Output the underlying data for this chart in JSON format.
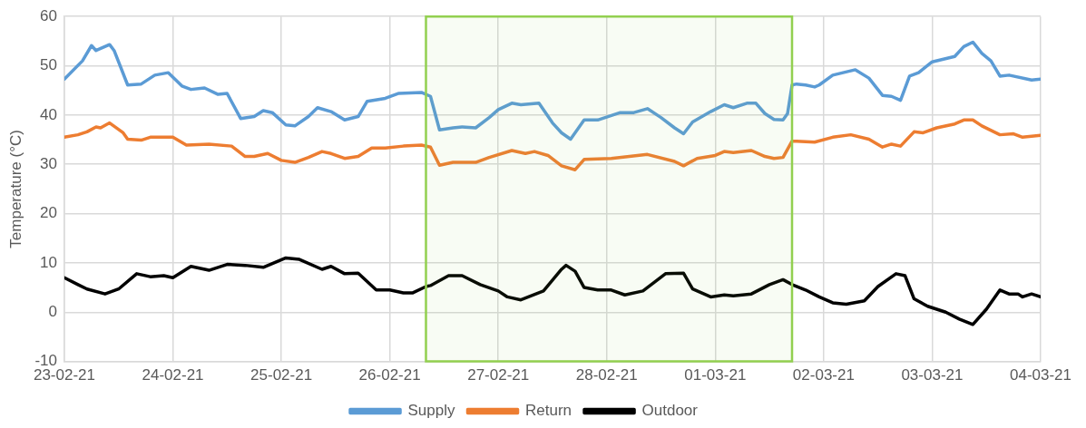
{
  "chart_data": {
    "type": "line",
    "ylabel": "Temperature (°C)",
    "xlim": [
      "--02-23",
      "--03-04"
    ],
    "xticks": [
      {
        "value": "--02-23",
        "label": "23-02-21"
      },
      {
        "value": "--02-24",
        "label": "24-02-21"
      },
      {
        "value": "--02-25",
        "label": "25-02-21"
      },
      {
        "value": "--02-26",
        "label": "26-02-21"
      },
      {
        "value": "--02-27",
        "label": "27-02-21"
      },
      {
        "value": "--02-28",
        "label": "28-02-21"
      },
      {
        "value": "--03-01",
        "label": "01-03-21"
      },
      {
        "value": "--03-02",
        "label": "02-03-21"
      },
      {
        "value": "--03-03",
        "label": "03-03-21"
      },
      {
        "value": "--03-04",
        "label": "04-03-21"
      }
    ],
    "ylim": [
      -10,
      60
    ],
    "yticks": [
      -10,
      0,
      10,
      20,
      30,
      40,
      50,
      60
    ],
    "grid": true,
    "legend": "bottom",
    "marker": "none",
    "line_style": "solid",
    "bands": [
      {
        "axis": "x",
        "from": "--02-26T08:00",
        "to": "--03-01T17:00",
        "color": "#92d050"
      }
    ],
    "series": [
      {
        "name": "Supply",
        "color": "#5b9bd5",
        "x": [
          "--02-23T00:00",
          "--02-23T04:00",
          "--02-23T06:00",
          "--02-23T07:00",
          "--02-23T10:00",
          "--02-23T11:00",
          "--02-23T14:00",
          "--02-23T17:00",
          "--02-23T20:00",
          "--02-23T23:00",
          "--02-24T02:00",
          "--02-24T04:00",
          "--02-24T07:00",
          "--02-24T10:00",
          "--02-24T12:00",
          "--02-24T15:00",
          "--02-24T18:00",
          "--02-24T20:00",
          "--02-24T22:00",
          "--02-25T01:00",
          "--02-25T03:00",
          "--02-25T06:00",
          "--02-25T08:00",
          "--02-25T11:00",
          "--02-25T14:00",
          "--02-25T17:00",
          "--02-25T19:00",
          "--02-25T23:00",
          "--02-26T02:00",
          "--02-26T07:00",
          "--02-26T09:00",
          "--02-26T11:00",
          "--02-26T14:00",
          "--02-26T16:00",
          "--02-26T19:00",
          "--02-26T22:00",
          "--02-27T00:00",
          "--02-27T03:00",
          "--02-27T05:00",
          "--02-27T09:00",
          "--02-27T12:00",
          "--02-27T14:00",
          "--02-27T16:00",
          "--02-27T19:00",
          "--02-27T22:00",
          "--02-28T03:00",
          "--02-28T06:00",
          "--02-28T09:00",
          "--02-28T12:00",
          "--02-28T15:00",
          "--02-28T17:00",
          "--02-28T19:00",
          "--02-28T23:00",
          "--03-01T02:00",
          "--03-01T04:00",
          "--03-01T07:00",
          "--03-01T09:00",
          "--03-01T11:00",
          "--03-01T13:00",
          "--03-01T15:00",
          "--03-01T16:00",
          "--03-01T17:00",
          "--03-01T18:00",
          "--03-01T20:00",
          "--03-01T22:00",
          "--03-01T23:00",
          "--03-02T02:00",
          "--03-02T07:00",
          "--03-02T10:00",
          "--03-02T13:00",
          "--03-02T15:00",
          "--03-02T17:00",
          "--03-02T19:00",
          "--03-02T21:00",
          "--03-03T00:00",
          "--03-03T05:00",
          "--03-03T07:00",
          "--03-03T09:00",
          "--03-03T11:00",
          "--03-03T13:00",
          "--03-03T15:00",
          "--03-03T17:00",
          "--03-03T22:00",
          "--03-04T00:00"
        ],
        "values": [
          47.3,
          51.0,
          54.1,
          53.1,
          54.3,
          53.1,
          46.1,
          46.3,
          48.1,
          48.6,
          45.9,
          45.2,
          45.5,
          44.2,
          44.4,
          39.3,
          39.7,
          40.9,
          40.5,
          38.0,
          37.8,
          39.7,
          41.5,
          40.7,
          39.0,
          39.7,
          42.8,
          43.4,
          44.4,
          44.6,
          43.8,
          37.0,
          37.4,
          37.6,
          37.4,
          39.5,
          41.1,
          42.4,
          42.1,
          42.4,
          38.4,
          36.4,
          35.1,
          39.0,
          39.0,
          40.5,
          40.5,
          41.3,
          39.5,
          37.4,
          36.2,
          38.6,
          40.7,
          42.1,
          41.5,
          42.4,
          42.4,
          40.3,
          39.1,
          39.0,
          40.3,
          46.1,
          46.3,
          46.1,
          45.7,
          46.1,
          48.1,
          49.2,
          47.5,
          44.0,
          43.8,
          43.0,
          47.9,
          48.6,
          50.8,
          51.9,
          53.9,
          54.8,
          52.5,
          51.0,
          47.9,
          48.1,
          47.1,
          47.3
        ]
      },
      {
        "name": "Return",
        "color": "#ed7d31",
        "x": [
          "--02-23T00:00",
          "--02-23T03:00",
          "--02-23T05:00",
          "--02-23T07:00",
          "--02-23T08:00",
          "--02-23T10:00",
          "--02-23T13:00",
          "--02-23T14:00",
          "--02-23T17:00",
          "--02-23T19:00",
          "--02-24T00:00",
          "--02-24T03:00",
          "--02-24T08:00",
          "--02-24T13:00",
          "--02-24T16:00",
          "--02-24T18:00",
          "--02-24T21:00",
          "--02-25T00:00",
          "--02-25T03:00",
          "--02-25T06:00",
          "--02-25T09:00",
          "--02-25T11:00",
          "--02-25T14:00",
          "--02-25T17:00",
          "--02-25T20:00",
          "--02-25T23:00",
          "--02-26T03:00",
          "--02-26T07:00",
          "--02-26T09:00",
          "--02-26T11:00",
          "--02-26T14:00",
          "--02-26T19:00",
          "--02-26T22:00",
          "--02-27T03:00",
          "--02-27T06:00",
          "--02-27T08:00",
          "--02-27T11:00",
          "--02-27T14:00",
          "--02-27T17:00",
          "--02-27T19:00",
          "--02-28T01:00",
          "--02-28T09:00",
          "--02-28T15:00",
          "--02-28T17:00",
          "--02-28T20:00",
          "--03-01T00:00",
          "--03-01T02:00",
          "--03-01T04:00",
          "--03-01T08:00",
          "--03-01T11:00",
          "--03-01T13:00",
          "--03-01T15:00",
          "--03-01T17:00",
          "--03-01T18:00",
          "--03-01T22:00",
          "--03-02T02:00",
          "--03-02T06:00",
          "--03-02T10:00",
          "--03-02T13:00",
          "--03-02T15:00",
          "--03-02T17:00",
          "--03-02T20:00",
          "--03-02T22:00",
          "--03-03T01:00",
          "--03-03T05:00",
          "--03-03T07:00",
          "--03-03T09:00",
          "--03-03T11:00",
          "--03-03T15:00",
          "--03-03T18:00",
          "--03-03T20:00",
          "--03-04T00:00"
        ],
        "values": [
          35.5,
          36.0,
          36.6,
          37.6,
          37.4,
          38.4,
          36.4,
          35.1,
          34.9,
          35.5,
          35.5,
          33.9,
          34.1,
          33.7,
          31.6,
          31.6,
          32.2,
          30.8,
          30.4,
          31.4,
          32.6,
          32.2,
          31.2,
          31.6,
          33.3,
          33.3,
          33.7,
          33.9,
          33.5,
          29.8,
          30.4,
          30.4,
          31.4,
          32.8,
          32.2,
          32.6,
          31.8,
          29.7,
          28.9,
          31.0,
          31.2,
          32.0,
          30.6,
          29.7,
          31.2,
          31.8,
          32.6,
          32.4,
          32.8,
          31.6,
          31.2,
          31.4,
          34.7,
          34.7,
          34.5,
          35.5,
          36.0,
          35.1,
          33.5,
          34.1,
          33.7,
          36.6,
          36.4,
          37.4,
          38.2,
          39.0,
          39.0,
          37.8,
          36.0,
          36.2,
          35.5,
          35.9
        ]
      },
      {
        "name": "Outdoor",
        "color": "#000000",
        "x": [
          "--02-23T00:00",
          "--02-23T03:00",
          "--02-23T05:00",
          "--02-23T09:00",
          "--02-23T12:00",
          "--02-23T16:00",
          "--02-23T19:00",
          "--02-23T22:00",
          "--02-24T00:00",
          "--02-24T04:00",
          "--02-24T08:00",
          "--02-24T12:00",
          "--02-24T16:00",
          "--02-24T20:00",
          "--02-25T01:00",
          "--02-25T04:00",
          "--02-25T09:00",
          "--02-25T11:00",
          "--02-25T14:00",
          "--02-25T17:00",
          "--02-25T21:00",
          "--02-26T00:00",
          "--02-26T03:00",
          "--02-26T05:00",
          "--02-26T08:00",
          "--02-26T09:00",
          "--02-26T13:00",
          "--02-26T16:00",
          "--02-26T20:00",
          "--02-27T00:00",
          "--02-27T02:00",
          "--02-27T05:00",
          "--02-27T10:00",
          "--02-27T14:00",
          "--02-27T15:00",
          "--02-27T17:00",
          "--02-27T19:00",
          "--02-27T22:00",
          "--02-28T01:00",
          "--02-28T04:00",
          "--02-28T08:00",
          "--02-28T13:00",
          "--02-28T17:00",
          "--02-28T19:00",
          "--02-28T23:00",
          "--03-01T02:00",
          "--03-01T04:00",
          "--03-01T08:00",
          "--03-01T12:00",
          "--03-01T15:00",
          "--03-01T17:00",
          "--03-01T20:00",
          "--03-01T23:00",
          "--03-02T02:00",
          "--03-02T05:00",
          "--03-02T09:00",
          "--03-02T12:00",
          "--03-02T16:00",
          "--03-02T18:00",
          "--03-02T20:00",
          "--03-02T23:00",
          "--03-03T03:00",
          "--03-03T06:00",
          "--03-03T09:00",
          "--03-03T12:00",
          "--03-03T15:00",
          "--03-03T17:00",
          "--03-03T19:00",
          "--03-03T20:00",
          "--03-03T22:00",
          "--03-04T00:00"
        ],
        "values": [
          7.0,
          5.6,
          4.7,
          3.7,
          4.7,
          7.8,
          7.2,
          7.4,
          7.0,
          9.3,
          8.5,
          9.7,
          9.5,
          9.1,
          11.0,
          10.7,
          8.7,
          9.3,
          7.8,
          7.9,
          4.5,
          4.5,
          3.9,
          3.9,
          5.2,
          5.4,
          7.4,
          7.4,
          5.6,
          4.3,
          3.1,
          2.5,
          4.3,
          8.7,
          9.5,
          8.3,
          5.0,
          4.5,
          4.5,
          3.5,
          4.3,
          7.8,
          7.9,
          4.7,
          3.1,
          3.5,
          3.3,
          3.7,
          5.6,
          6.6,
          5.6,
          4.5,
          3.1,
          1.9,
          1.6,
          2.3,
          5.2,
          7.8,
          7.4,
          2.7,
          1.2,
          0.0,
          -1.4,
          -2.5,
          0.6,
          4.5,
          3.7,
          3.7,
          3.1,
          3.7,
          3.1
        ]
      }
    ]
  }
}
